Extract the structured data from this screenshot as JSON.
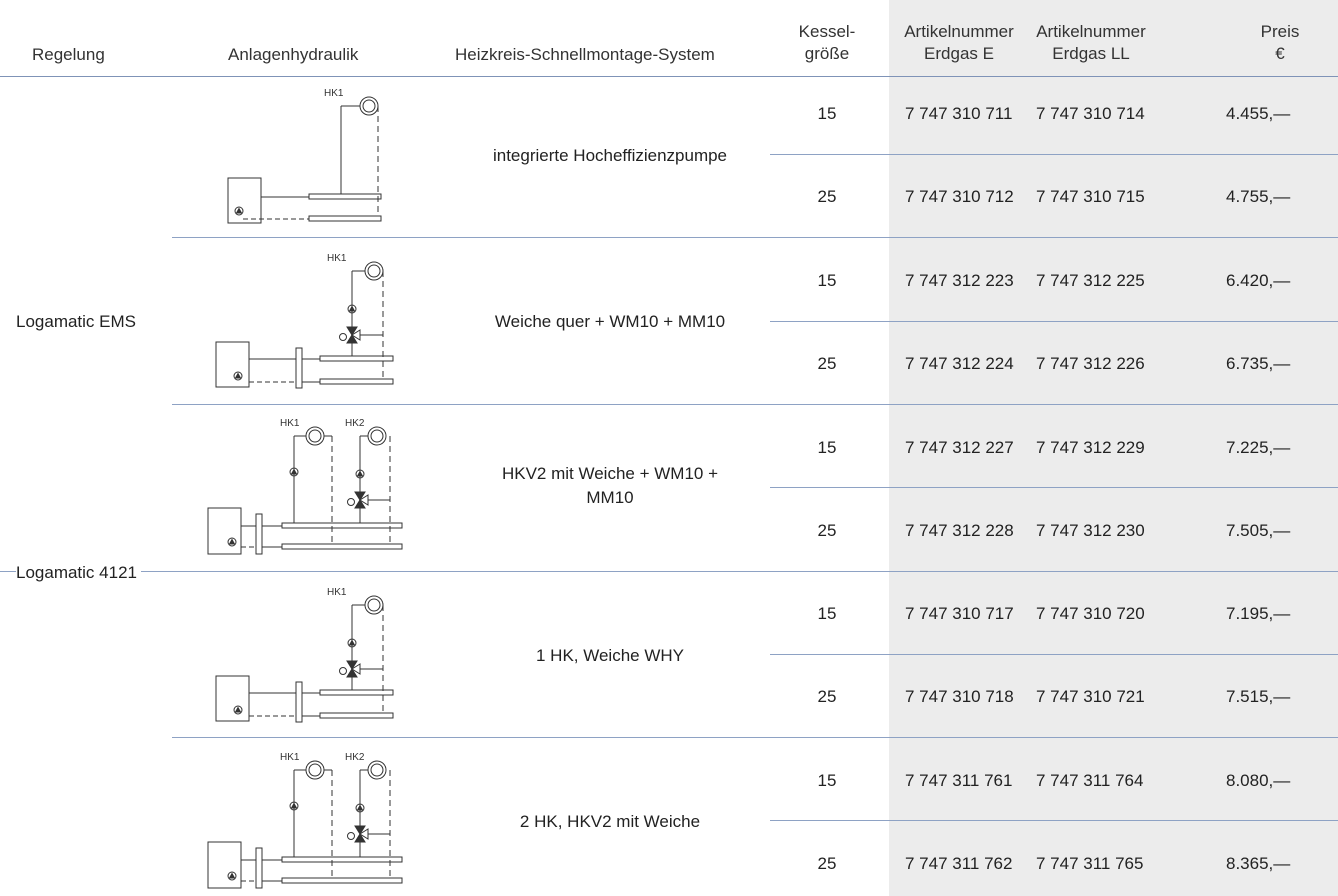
{
  "headers": {
    "regelung": "Regelung",
    "hydraulik": "Anlagenhydraulik",
    "system": "Heizkreis-Schnellmontage-System",
    "kessel_1": "Kessel-",
    "kessel_2": "größe",
    "art_e_1": "Artikelnummer",
    "art_e_2": "Erdgas E",
    "art_ll_1": "Artikelnummer",
    "art_ll_2": "Erdgas LL",
    "preis_1": "Preis",
    "preis_2": "€"
  },
  "regelung_groups": [
    {
      "label": "Logamatic EMS"
    },
    {
      "label": "Logamatic 4121"
    }
  ],
  "diagram_labels": {
    "hk1": "HK1",
    "hk2": "HK2"
  },
  "systems": [
    {
      "name": "integrierte Hocheffizienzpumpe",
      "name_2": "",
      "rows": [
        {
          "size": "15",
          "art_e": "7 747 310 711",
          "art_ll": "7 747 310 714",
          "price": "4.455,—"
        },
        {
          "size": "25",
          "art_e": "7 747 310 712",
          "art_ll": "7 747 310 715",
          "price": "4.755,—"
        }
      ]
    },
    {
      "name": "Weiche quer + WM10 + MM10",
      "name_2": "",
      "rows": [
        {
          "size": "15",
          "art_e": "7 747 312 223",
          "art_ll": "7 747 312 225",
          "price": "6.420,—"
        },
        {
          "size": "25",
          "art_e": "7 747 312 224",
          "art_ll": "7 747 312 226",
          "price": "6.735,—"
        }
      ]
    },
    {
      "name": "HKV2 mit Weiche + WM10 +",
      "name_2": "MM10",
      "rows": [
        {
          "size": "15",
          "art_e": "7 747 312 227",
          "art_ll": "7 747 312 229",
          "price": "7.225,—"
        },
        {
          "size": "25",
          "art_e": "7 747 312 228",
          "art_ll": "7 747 312 230",
          "price": "7.505,—"
        }
      ]
    },
    {
      "name": "1 HK, Weiche WHY",
      "name_2": "",
      "rows": [
        {
          "size": "15",
          "art_e": "7 747 310 717",
          "art_ll": "7 747 310 720",
          "price": "7.195,—"
        },
        {
          "size": "25",
          "art_e": "7 747 310 718",
          "art_ll": "7 747 310 721",
          "price": "7.515,—"
        }
      ]
    },
    {
      "name": "2 HK, HKV2 mit Weiche",
      "name_2": "",
      "rows": [
        {
          "size": "15",
          "art_e": "7 747 311 761",
          "art_ll": "7 747 311 764",
          "price": "8.080,—"
        },
        {
          "size": "25",
          "art_e": "7 747 311 762",
          "art_ll": "7 747 311 765",
          "price": "8.365,—"
        }
      ]
    }
  ]
}
